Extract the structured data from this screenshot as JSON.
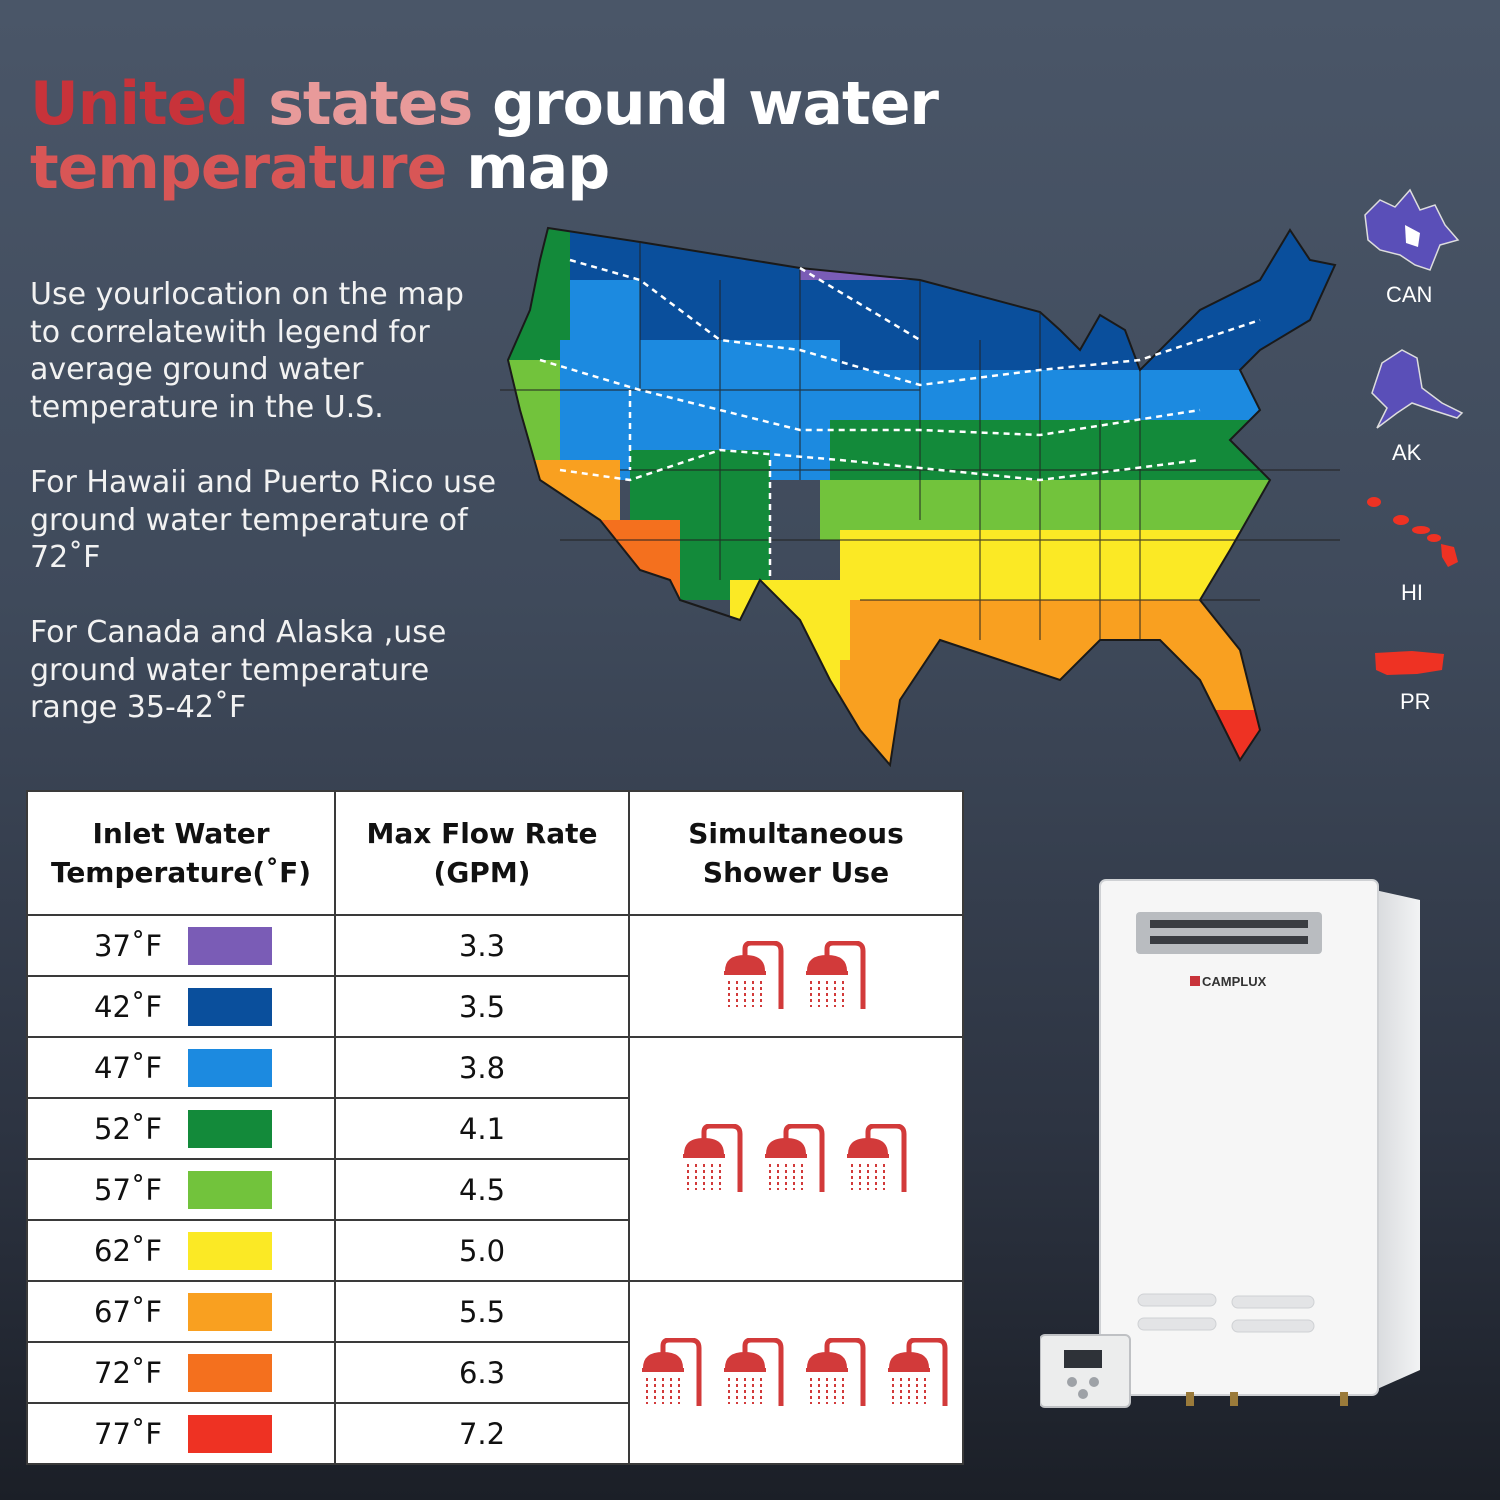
{
  "title": {
    "part1": "United",
    "part2": "states",
    "part3": "ground water",
    "part4": "temperature",
    "part5": "map"
  },
  "paragraphs": {
    "p1": "Use yourlocation on the map to correlatewith legend for average ground water temperature in the U.S.",
    "p2": "For Hawaii and Puerto Rico use ground water temperature of 72˚F",
    "p3": "For Canada and Alaska ,use ground water temperature range 35-42˚F"
  },
  "insets": {
    "can": "CAN",
    "ak": "AK",
    "hi": "HI",
    "pr": "PR"
  },
  "table": {
    "headers": [
      "Inlet Water Temperature(˚F)",
      "Max Flow Rate (GPM)",
      "Simultaneous Shower Use"
    ],
    "rows": [
      {
        "temp": "37˚F",
        "color": "#7a5cb6",
        "gpm": "3.3"
      },
      {
        "temp": "42˚F",
        "color": "#0a4f9c",
        "gpm": "3.5"
      },
      {
        "temp": "47˚F",
        "color": "#1c8ae0",
        "gpm": "3.8"
      },
      {
        "temp": "52˚F",
        "color": "#138a3a",
        "gpm": "4.1"
      },
      {
        "temp": "57˚F",
        "color": "#72c33c",
        "gpm": "4.5"
      },
      {
        "temp": "62˚F",
        "color": "#fbe925",
        "gpm": "5.0"
      },
      {
        "temp": "67˚F",
        "color": "#f9a020",
        "gpm": "5.5"
      },
      {
        "temp": "72˚F",
        "color": "#f4701e",
        "gpm": "6.3"
      },
      {
        "temp": "77˚F",
        "color": "#ee3223",
        "gpm": "7.2"
      }
    ],
    "shower_groups": [
      {
        "count": 2
      },
      {
        "count": 3
      },
      {
        "count": 4
      }
    ]
  },
  "product": {
    "brand": "CAMPLUX"
  },
  "colors": {
    "shower": "#d23a3a",
    "title_red": "#c8333a"
  }
}
